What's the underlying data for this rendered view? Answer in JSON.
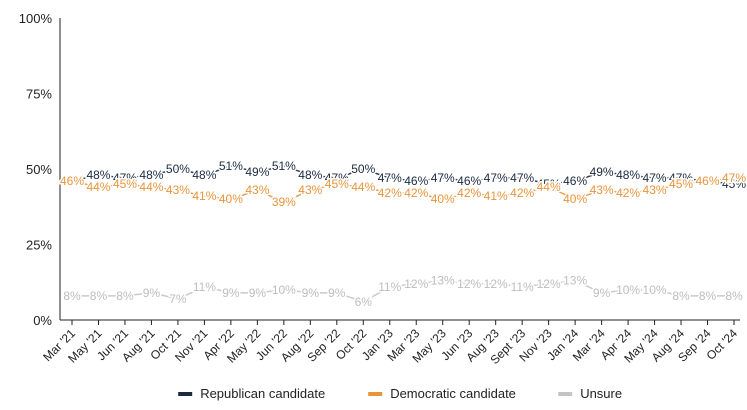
{
  "chart_data": {
    "type": "line",
    "categories": [
      "Mar '21",
      "May '21",
      "Jun '21",
      "Aug '21",
      "Oct '21",
      "Nov '21",
      "Apr '22",
      "May '22",
      "Jun '22",
      "Aug '22",
      "Sep '22",
      "Oct '22",
      "Jan '23",
      "Mar '23",
      "May '23",
      "Jun '23",
      "Aug '23",
      "Sept '23",
      "Nov '23",
      "Jan '24",
      "Mar '24",
      "Apr '24",
      "May '24",
      "Aug '24",
      "Sep '24",
      "Oct '24"
    ],
    "ylim": [
      0,
      100
    ],
    "yticks": [
      "0%",
      "25%",
      "50%",
      "75%",
      "100%"
    ],
    "ytick_values": [
      0,
      25,
      50,
      75,
      100
    ],
    "grid": false,
    "legend_position": "bottom",
    "series": [
      {
        "name": "Republican candidate",
        "color": "#1b2a41",
        "values": [
          46,
          48,
          47,
          48,
          50,
          48,
          51,
          49,
          51,
          48,
          47,
          50,
          47,
          46,
          47,
          46,
          47,
          47,
          45,
          46,
          49,
          48,
          47,
          47,
          46,
          45
        ],
        "labels": [
          "46%",
          "48%",
          "47%",
          "48%",
          "50%",
          "48%",
          "51%",
          "49%",
          "51%",
          "48%",
          "47%",
          "50%",
          "47%",
          "46%",
          "47%",
          "46%",
          "47%",
          "47%",
          "45%",
          "46%",
          "49%",
          "48%",
          "47%",
          "47%",
          "46%",
          "45%"
        ]
      },
      {
        "name": "Democratic candidate",
        "color": "#e8943a",
        "values": [
          46,
          44,
          45,
          44,
          43,
          41,
          40,
          43,
          39,
          43,
          45,
          44,
          42,
          42,
          40,
          42,
          41,
          42,
          44,
          40,
          43,
          42,
          43,
          45,
          46,
          47
        ],
        "labels": [
          "46%",
          "44%",
          "45%",
          "44%",
          "43%",
          "41%",
          "40%",
          "43%",
          "39%",
          "43%",
          "45%",
          "44%",
          "42%",
          "42%",
          "40%",
          "42%",
          "41%",
          "42%",
          "44%",
          "40%",
          "43%",
          "42%",
          "43%",
          "45%",
          "46%",
          "47%"
        ]
      },
      {
        "name": "Unsure",
        "color": "#c4c4c4",
        "values": [
          8,
          8,
          8,
          9,
          7,
          11,
          9,
          9,
          10,
          9,
          9,
          6,
          11,
          12,
          13,
          12,
          12,
          11,
          12,
          13,
          9,
          10,
          10,
          8,
          8,
          8
        ],
        "labels": [
          "8%",
          "8%",
          "8%",
          "9%",
          "7%",
          "11%",
          "9%",
          "9%",
          "10%",
          "9%",
          "9%",
          "6%",
          "11%",
          "12%",
          "13%",
          "12%",
          "12%",
          "11%",
          "12%",
          "13%",
          "9%",
          "10%",
          "10%",
          "8%",
          "8%",
          "8%"
        ]
      }
    ]
  }
}
